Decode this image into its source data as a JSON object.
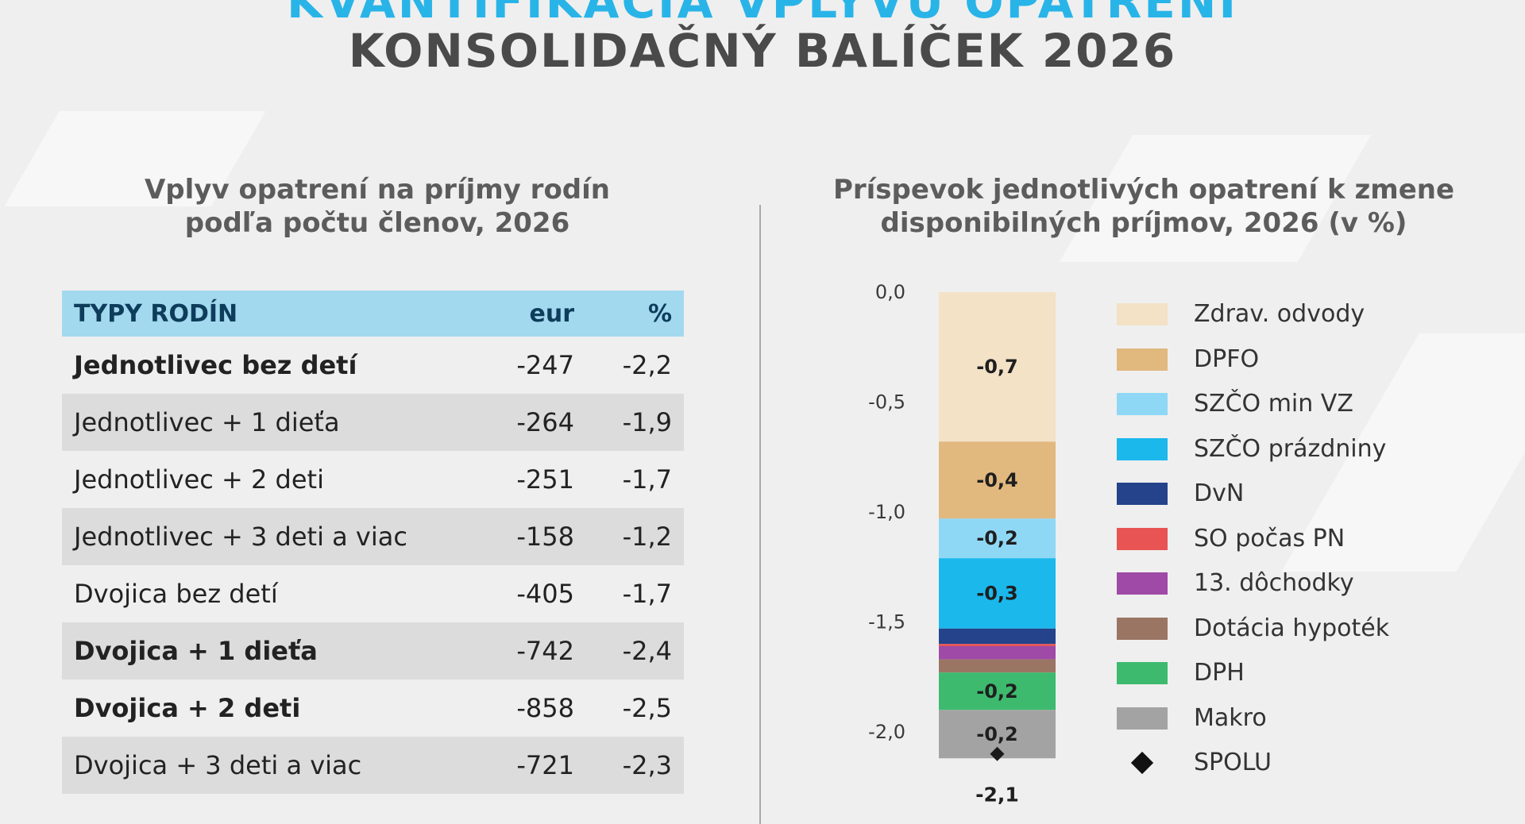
{
  "header": {
    "cut_title": "KVANTIFIKÁCIA VPLYVU OPATRENÍ",
    "title": "KONSOLIDAČNÝ BALÍČEK 2026"
  },
  "left": {
    "subtitle_line1": "Vplyv opatrení na príjmy rodín",
    "subtitle_line2": "podľa počtu členov, 2026",
    "table": {
      "headers": [
        "TYPY RODÍN",
        "eur",
        "%"
      ],
      "rows": [
        {
          "label": "Jednotlivec bez detí",
          "eur": "-247",
          "pct": "-2,2",
          "bold": true,
          "shade": false
        },
        {
          "label": "Jednotlivec + 1 dieťa",
          "eur": "-264",
          "pct": "-1,9",
          "bold": false,
          "shade": true
        },
        {
          "label": "Jednotlivec + 2 deti",
          "eur": "-251",
          "pct": "-1,7",
          "bold": false,
          "shade": false
        },
        {
          "label": "Jednotlivec + 3 deti a viac",
          "eur": "-158",
          "pct": "-1,2",
          "bold": false,
          "shade": true
        },
        {
          "label": "Dvojica bez detí",
          "eur": "-405",
          "pct": "-1,7",
          "bold": false,
          "shade": false
        },
        {
          "label": "Dvojica + 1 dieťa",
          "eur": "-742",
          "pct": "-2,4",
          "bold": true,
          "shade": true
        },
        {
          "label": "Dvojica + 2 deti",
          "eur": "-858",
          "pct": "-2,5",
          "bold": true,
          "shade": false
        },
        {
          "label": "Dvojica + 3 deti a viac",
          "eur": "-721",
          "pct": "-2,3",
          "bold": false,
          "shade": true
        }
      ]
    }
  },
  "right": {
    "subtitle_line1": "Príspevok jednotlivých opatrení k zmene",
    "subtitle_line2": "disponibilných príjmov, 2026 (v %)"
  },
  "chart_data": {
    "type": "bar",
    "stacked": true,
    "title": "Príspevok jednotlivých opatrení k zmene disponibilných príjmov, 2026 (v %)",
    "ylim": [
      -2.0,
      0.0
    ],
    "yticks": [
      0.0,
      -0.5,
      -1.0,
      -1.5,
      -2.0
    ],
    "ytick_labels": [
      "0,0",
      "-0,5",
      "-1,0",
      "-1,5",
      "-2,0"
    ],
    "legend_position": "right",
    "series": [
      {
        "name": "Zdrav. odvody",
        "value": -0.68,
        "label": "-0,7",
        "color": "#f3e2c6"
      },
      {
        "name": "DPFO",
        "value": -0.35,
        "label": "-0,4",
        "color": "#e1b87e"
      },
      {
        "name": "SZČO min VZ",
        "value": -0.18,
        "label": "-0,2",
        "color": "#8fd8f5"
      },
      {
        "name": "SZČO prázdniny",
        "value": -0.32,
        "label": "-0,3",
        "color": "#1bb8ec"
      },
      {
        "name": "DvN",
        "value": -0.07,
        "label": "",
        "color": "#24438a"
      },
      {
        "name": "SO počas PN",
        "value": -0.01,
        "label": "",
        "color": "#e85353"
      },
      {
        "name": "13. dôchodky",
        "value": -0.06,
        "label": "",
        "color": "#9e4aa6"
      },
      {
        "name": "Dotácia hypoték",
        "value": -0.06,
        "label": "",
        "color": "#9a7564"
      },
      {
        "name": "DPH",
        "value": -0.17,
        "label": "-0,2",
        "color": "#3dba6e"
      },
      {
        "name": "Makro",
        "value": -0.22,
        "label": "-0,2",
        "color": "#a3a3a3"
      }
    ],
    "total": {
      "name": "SPOLU",
      "value": -2.1,
      "label": "-2,1"
    }
  }
}
